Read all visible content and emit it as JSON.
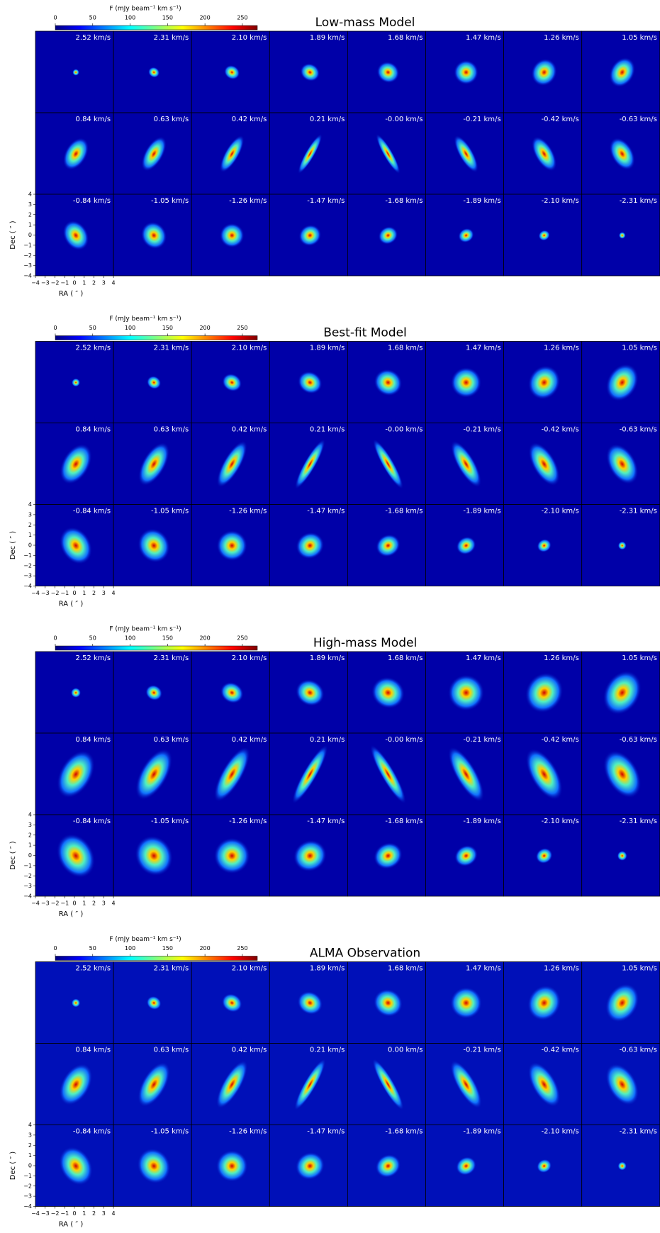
{
  "chart_data": [
    {
      "type": "channel-map",
      "title": "Low-mass Model",
      "colorbar_label": "F (mJy beam⁻¹ km s⁻¹)",
      "clim": [
        0,
        270
      ],
      "cticks": [
        0,
        50,
        100,
        150,
        200,
        250
      ],
      "channels": [
        "2.52 km/s",
        "2.31 km/s",
        "2.10 km/s",
        "1.89 km/s",
        "1.68 km/s",
        "1.47 km/s",
        "1.26 km/s",
        "1.05 km/s",
        "0.84 km/s",
        "0.63 km/s",
        "0.42 km/s",
        "0.21 km/s",
        "-0.00 km/s",
        "-0.21 km/s",
        "-0.42 km/s",
        "-0.63 km/s",
        "-0.84 km/s",
        "-1.05 km/s",
        "-1.26 km/s",
        "-1.47 km/s",
        "-1.68 km/s",
        "-1.89 km/s",
        "-2.10 km/s",
        "-2.31 km/s"
      ],
      "xlabel": "RA ( ″ )",
      "ylabel": "Dec ( ″ )",
      "xlim": [
        -4,
        4
      ],
      "ylim": [
        -4,
        4
      ],
      "xticks": [
        {
          "value": -4,
          "label": "−4"
        },
        {
          "value": -3,
          "label": "−3"
        },
        {
          "value": -2,
          "label": "−2"
        },
        {
          "value": -1,
          "label": "−1"
        },
        0,
        1,
        2,
        3,
        4
      ],
      "yticks": [
        {
          "value": -4,
          "label": "−4"
        },
        {
          "value": -3,
          "label": "−3"
        },
        {
          "value": -2,
          "label": "−2"
        },
        {
          "value": -1,
          "label": "−1"
        },
        0,
        1,
        2,
        3,
        4
      ]
    },
    {
      "type": "channel-map",
      "title": "Best-fit Model",
      "colorbar_label": "F (mJy beam⁻¹ km s⁻¹)",
      "clim": [
        0,
        270
      ],
      "cticks": [
        0,
        50,
        100,
        150,
        200,
        250
      ],
      "channels": [
        "2.52 km/s",
        "2.31 km/s",
        "2.10 km/s",
        "1.89 km/s",
        "1.68 km/s",
        "1.47 km/s",
        "1.26 km/s",
        "1.05 km/s",
        "0.84 km/s",
        "0.63 km/s",
        "0.42 km/s",
        "0.21 km/s",
        "-0.00 km/s",
        "-0.21 km/s",
        "-0.42 km/s",
        "-0.63 km/s",
        "-0.84 km/s",
        "-1.05 km/s",
        "-1.26 km/s",
        "-1.47 km/s",
        "-1.68 km/s",
        "-1.89 km/s",
        "-2.10 km/s",
        "-2.31 km/s"
      ],
      "xlabel": "RA ( ″ )",
      "ylabel": "Dec ( ″ )",
      "xlim": [
        -4,
        4
      ],
      "ylim": [
        -4,
        4
      ],
      "xticks": [
        {
          "value": -4,
          "label": "−4"
        },
        {
          "value": -3,
          "label": "−3"
        },
        {
          "value": -2,
          "label": "−2"
        },
        {
          "value": -1,
          "label": "−1"
        },
        0,
        1,
        2,
        3,
        4
      ],
      "yticks": [
        {
          "value": -4,
          "label": "−4"
        },
        {
          "value": -3,
          "label": "−3"
        },
        {
          "value": -2,
          "label": "−2"
        },
        {
          "value": -1,
          "label": "−1"
        },
        0,
        1,
        2,
        3,
        4
      ]
    },
    {
      "type": "channel-map",
      "title": "High-mass Model",
      "colorbar_label": "F (mJy beam⁻¹ km s⁻¹)",
      "clim": [
        0,
        270
      ],
      "cticks": [
        0,
        50,
        100,
        150,
        200,
        250
      ],
      "channels": [
        "2.52 km/s",
        "2.31 km/s",
        "2.10 km/s",
        "1.89 km/s",
        "1.68 km/s",
        "1.47 km/s",
        "1.26 km/s",
        "1.05 km/s",
        "0.84 km/s",
        "0.63 km/s",
        "0.42 km/s",
        "0.21 km/s",
        "-0.00 km/s",
        "-0.21 km/s",
        "-0.42 km/s",
        "-0.63 km/s",
        "-0.84 km/s",
        "-1.05 km/s",
        "-1.26 km/s",
        "-1.47 km/s",
        "-1.68 km/s",
        "-1.89 km/s",
        "-2.10 km/s",
        "-2.31 km/s"
      ],
      "xlabel": "RA ( ″ )",
      "ylabel": "Dec ( ″ )",
      "xlim": [
        -4,
        4
      ],
      "ylim": [
        -4,
        4
      ],
      "xticks": [
        {
          "value": -4,
          "label": "−4"
        },
        {
          "value": -3,
          "label": "−3"
        },
        {
          "value": -2,
          "label": "−2"
        },
        {
          "value": -1,
          "label": "−1"
        },
        0,
        1,
        2,
        3,
        4
      ],
      "yticks": [
        {
          "value": -4,
          "label": "−4"
        },
        {
          "value": -3,
          "label": "−3"
        },
        {
          "value": -2,
          "label": "−2"
        },
        {
          "value": -1,
          "label": "−1"
        },
        0,
        1,
        2,
        3,
        4
      ]
    },
    {
      "type": "channel-map",
      "title": "ALMA Observation",
      "colorbar_label": "F (mJy beam⁻¹ km s⁻¹)",
      "clim": [
        0,
        270
      ],
      "cticks": [
        0,
        50,
        100,
        150,
        200,
        250
      ],
      "channels": [
        "2.52 km/s",
        "2.31 km/s",
        "2.10 km/s",
        "1.89 km/s",
        "1.68 km/s",
        "1.47 km/s",
        "1.26 km/s",
        "1.05 km/s",
        "0.84 km/s",
        "0.63 km/s",
        "0.42 km/s",
        "0.21 km/s",
        "0.00 km/s",
        "-0.21 km/s",
        "-0.42 km/s",
        "-0.63 km/s",
        "-0.84 km/s",
        "-1.05 km/s",
        "-1.26 km/s",
        "-1.47 km/s",
        "-1.68 km/s",
        "-1.89 km/s",
        "-2.10 km/s",
        "-2.31 km/s"
      ],
      "xlabel": "RA ( ″ )",
      "ylabel": "Dec ( ″ )",
      "xlim": [
        -4,
        4
      ],
      "ylim": [
        -4,
        4
      ],
      "xticks": [
        {
          "value": -4,
          "label": "−4"
        },
        {
          "value": -3,
          "label": "−3"
        },
        {
          "value": -2,
          "label": "−2"
        },
        {
          "value": -1,
          "label": "−1"
        },
        0,
        1,
        2,
        3,
        4
      ],
      "yticks": [
        {
          "value": -4,
          "label": "−4"
        },
        {
          "value": -3,
          "label": "−3"
        },
        {
          "value": -2,
          "label": "−2"
        },
        {
          "value": -1,
          "label": "−1"
        },
        0,
        1,
        2,
        3,
        4
      ]
    }
  ]
}
